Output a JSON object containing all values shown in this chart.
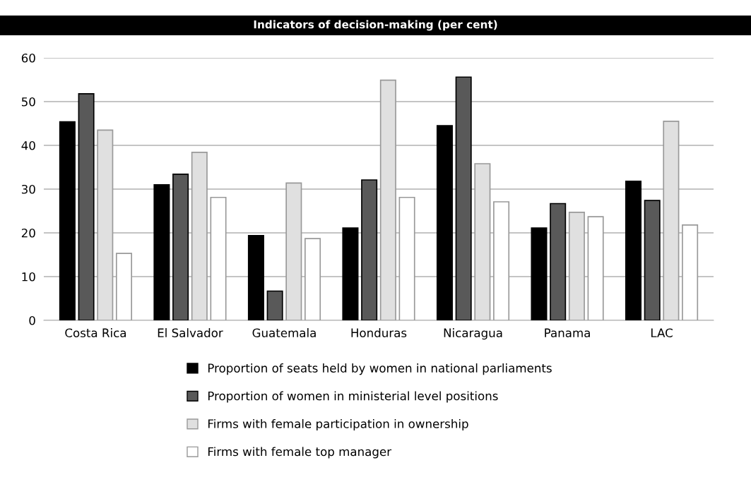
{
  "chart_data": {
    "type": "bar",
    "title": "Indicators of decision-making (per cent)",
    "categories": [
      "Costa Rica",
      "El Salvador",
      "Guatemala",
      "Honduras",
      "Nicaragua",
      "Panama",
      "LAC"
    ],
    "series": [
      {
        "name": "Proportion of seats held by women in national parliaments",
        "color": "#000000",
        "values": [
          45.4,
          31.0,
          19.4,
          21.1,
          44.5,
          21.1,
          31.8
        ]
      },
      {
        "name": "Proportion of women in ministerial level positions",
        "color": "#595959",
        "values": [
          51.8,
          33.4,
          6.7,
          32.1,
          55.6,
          26.7,
          27.4
        ]
      },
      {
        "name": "Firms with female participation in ownership",
        "color": "#e0e0e0",
        "values": [
          43.5,
          38.4,
          31.4,
          54.9,
          35.8,
          24.7,
          45.5
        ]
      },
      {
        "name": "Firms with female top manager",
        "color": "#ffffff",
        "values": [
          15.3,
          28.1,
          18.7,
          28.1,
          27.1,
          23.7,
          21.8
        ]
      }
    ],
    "ylim": [
      0,
      60
    ],
    "yticks": [
      0,
      10,
      20,
      30,
      40,
      50,
      60
    ],
    "grid": "y",
    "legend": "bottom"
  }
}
